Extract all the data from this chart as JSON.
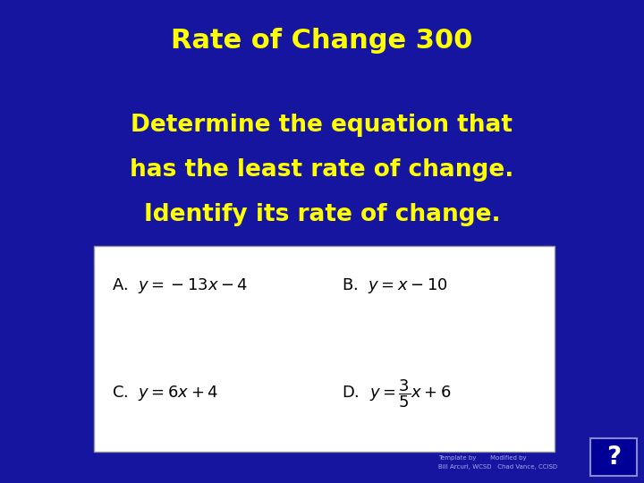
{
  "title": "Rate of Change 300",
  "question_line1": "Determine the equation that",
  "question_line2": "has the least rate of change.",
  "question_line3": "Identify its rate of change.",
  "bg_color": "#1515a0",
  "title_color": "#ffff00",
  "question_color": "#ffff00",
  "box_bg": "#ffffff",
  "box_text_color": "#000000",
  "option_A": "A.  $y = -13x - 4$",
  "option_B": "B.  $y = x - 10$",
  "option_C": "C.  $y = 6x + 4$",
  "option_D": "D.  $y = \\dfrac{3}{5}x + 6$",
  "footer1": "Template by       Modified by",
  "footer2": "Bill Arcuri, WCSD   Chad Vance, CCISD",
  "footer_color": "#aaaaee",
  "question_mark_color": "#ffffff",
  "question_mark_bg": "#000099",
  "title_fontsize": 22,
  "question_fontsize": 19,
  "option_fontsize": 13
}
